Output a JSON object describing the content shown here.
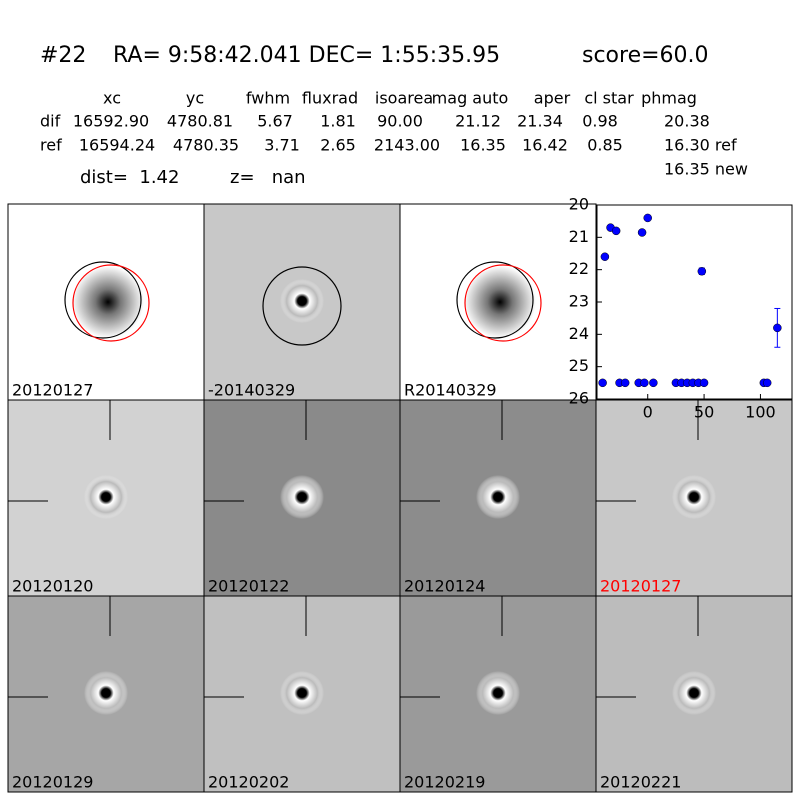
{
  "header": {
    "id": "#22",
    "coords": "RA= 9:58:42.041 DEC= 1:55:35.95",
    "score": "score=60.0"
  },
  "table": {
    "columns": [
      "xc",
      "yc",
      "fwhm",
      "fluxrad",
      "isoarea",
      "mag auto",
      "aper",
      "cl star",
      "phmag"
    ],
    "rows": [
      [
        "dif",
        "16592.90",
        "4780.81",
        "5.67",
        "1.81",
        "90.00",
        "21.12",
        "21.34",
        "0.98",
        "20.38"
      ],
      [
        "ref",
        "16594.24",
        "4780.35",
        "3.71",
        "2.65",
        "2143.00",
        "16.35",
        "16.42",
        "0.85",
        "16.30 ref"
      ]
    ],
    "note": "16.35 new"
  },
  "dist": "dist=  1.42",
  "z": "z=   nan",
  "panels": [
    {
      "label": "20120127",
      "color": "#000000"
    },
    {
      "label": "-20140329",
      "color": "#000000"
    },
    {
      "label": "R20140329",
      "color": "#000000"
    },
    {
      "label": "20120120",
      "color": "#000000"
    },
    {
      "label": "20120122",
      "color": "#000000"
    },
    {
      "label": "20120124",
      "color": "#000000"
    },
    {
      "label": "20120127",
      "color": "#ff0000"
    },
    {
      "label": "20120129",
      "color": "#000000"
    },
    {
      "label": "20120202",
      "color": "#000000"
    },
    {
      "label": "20120219",
      "color": "#000000"
    },
    {
      "label": "20120221",
      "color": "#000000"
    }
  ],
  "chart_data": {
    "type": "scatter",
    "color": "#0000ff",
    "x": [
      -40,
      -38,
      -33,
      -28,
      -25,
      -20,
      -8,
      -5,
      -3,
      0,
      5,
      25,
      30,
      35,
      40,
      45,
      48,
      50,
      103,
      106,
      115
    ],
    "values": [
      25.5,
      21.6,
      20.7,
      20.8,
      25.5,
      25.5,
      25.5,
      20.85,
      25.5,
      20.4,
      25.5,
      25.5,
      25.5,
      25.5,
      25.5,
      25.5,
      22.05,
      25.5,
      25.5,
      25.5,
      23.8
    ],
    "errors": [
      null,
      null,
      null,
      null,
      null,
      null,
      null,
      null,
      null,
      null,
      null,
      null,
      null,
      null,
      null,
      null,
      0.1,
      null,
      null,
      null,
      0.6
    ],
    "xlim": [
      -45,
      128
    ],
    "ylim": [
      26,
      20
    ],
    "xticks": [
      0,
      50,
      100
    ],
    "yticks": [
      20,
      21,
      22,
      23,
      24,
      25,
      26
    ]
  }
}
